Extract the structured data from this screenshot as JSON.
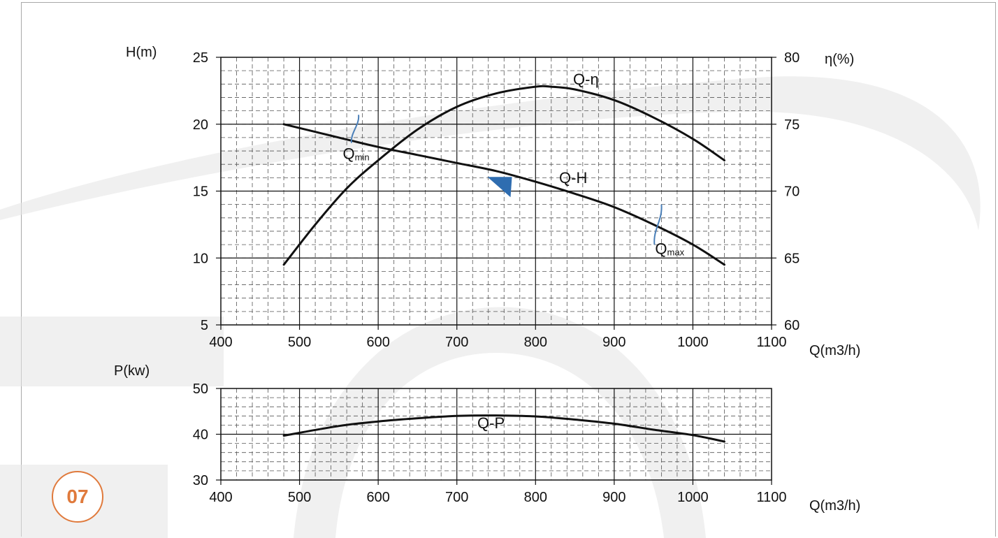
{
  "page": {
    "badge": "07",
    "accent_color": "#e07a3c"
  },
  "chart_data": [
    {
      "type": "line",
      "title": "",
      "xlabel": "Q(m3/h)",
      "ylabel": "H(m)",
      "y2label": "η(%)",
      "xlim": [
        400,
        1100
      ],
      "ylim": [
        5,
        25
      ],
      "y2lim": [
        60,
        80
      ],
      "x_ticks": [
        400,
        500,
        600,
        700,
        800,
        900,
        1000,
        1100
      ],
      "y_ticks": [
        5,
        10,
        15,
        20,
        25
      ],
      "y2_ticks": [
        60,
        65,
        70,
        75,
        80
      ],
      "grid": true,
      "series": [
        {
          "name": "Q-H",
          "axis": "left",
          "x": [
            480,
            550,
            600,
            650,
            700,
            750,
            800,
            850,
            900,
            950,
            1000,
            1040
          ],
          "y": [
            20.0,
            19.0,
            18.3,
            17.7,
            17.1,
            16.5,
            15.7,
            14.8,
            13.8,
            12.5,
            11.0,
            9.5
          ]
        },
        {
          "name": "Q-η",
          "axis": "right",
          "x": [
            480,
            520,
            560,
            600,
            650,
            700,
            750,
            800,
            820,
            850,
            900,
            950,
            1000,
            1040
          ],
          "y": [
            64.5,
            67.5,
            70.2,
            72.3,
            74.6,
            76.3,
            77.3,
            77.8,
            77.8,
            77.6,
            76.8,
            75.5,
            73.9,
            72.3
          ]
        }
      ],
      "annotations": [
        {
          "text": "Q",
          "sub": "min",
          "x": 555,
          "y": 17.4,
          "marker_x": 575,
          "marker_y1": 18.6,
          "marker_y2": 20.7
        },
        {
          "text": "Q",
          "sub": "max",
          "x": 952,
          "y": 10.3,
          "marker_x": 960,
          "marker_y1": 11.0,
          "marker_y2": 14.0
        }
      ],
      "operating_point": {
        "x": 778,
        "y": 15.9,
        "color": "#2f6db0"
      }
    },
    {
      "type": "line",
      "title": "",
      "xlabel": "Q(m3/h)",
      "ylabel": "P(kw)",
      "xlim": [
        400,
        1100
      ],
      "ylim": [
        30,
        50
      ],
      "x_ticks": [
        400,
        500,
        600,
        700,
        800,
        900,
        1000,
        1100
      ],
      "y_ticks": [
        30,
        40,
        50
      ],
      "grid": true,
      "series": [
        {
          "name": "Q-P",
          "axis": "left",
          "x": [
            480,
            550,
            600,
            650,
            700,
            750,
            800,
            850,
            900,
            950,
            1000,
            1040
          ],
          "y": [
            39.7,
            41.8,
            42.8,
            43.5,
            44.0,
            44.1,
            43.9,
            43.2,
            42.3,
            41.0,
            39.8,
            38.4
          ]
        }
      ]
    }
  ]
}
